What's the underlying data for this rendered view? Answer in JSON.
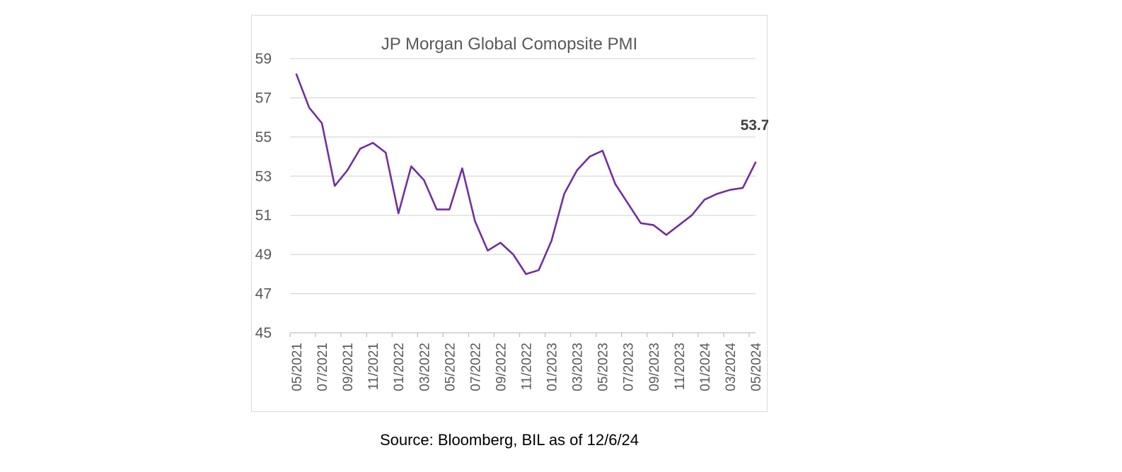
{
  "chart_data": {
    "type": "line",
    "title": "JP Morgan Global Comopsite PMI",
    "xlabel": "",
    "ylabel": "",
    "ylim": [
      45,
      59
    ],
    "y_ticks": [
      "45",
      "47",
      "49",
      "51",
      "53",
      "55",
      "57",
      "59"
    ],
    "x": [
      "05/2021",
      "06/2021",
      "07/2021",
      "08/2021",
      "09/2021",
      "10/2021",
      "11/2021",
      "12/2021",
      "01/2022",
      "02/2022",
      "03/2022",
      "04/2022",
      "05/2022",
      "06/2022",
      "07/2022",
      "08/2022",
      "09/2022",
      "10/2022",
      "11/2022",
      "12/2022",
      "01/2023",
      "02/2023",
      "03/2023",
      "04/2023",
      "05/2023",
      "06/2023",
      "07/2023",
      "08/2023",
      "09/2023",
      "10/2023",
      "11/2023",
      "12/2023",
      "01/2024",
      "02/2024",
      "03/2024",
      "04/2024",
      "05/2024"
    ],
    "x_tick_labels": [
      "05/2021",
      "07/2021",
      "09/2021",
      "11/2021",
      "01/2022",
      "03/2022",
      "05/2022",
      "07/2022",
      "09/2022",
      "11/2022",
      "01/2023",
      "03/2023",
      "05/2023",
      "07/2023",
      "09/2023",
      "11/2023",
      "01/2024",
      "03/2024",
      "05/2024"
    ],
    "series": [
      {
        "values": [
          58.2,
          56.5,
          55.7,
          52.5,
          53.3,
          54.4,
          54.7,
          54.2,
          51.1,
          53.5,
          52.8,
          51.3,
          51.3,
          53.4,
          50.7,
          49.2,
          49.6,
          49.0,
          48.0,
          48.2,
          49.7,
          52.1,
          53.3,
          54.0,
          54.3,
          52.6,
          51.6,
          50.6,
          50.5,
          50.0,
          50.5,
          51.0,
          51.8,
          52.1,
          52.3,
          52.4,
          53.7
        ],
        "color": "#7030a0"
      }
    ],
    "annotations": [
      {
        "label": "53.7",
        "x": "05/2024",
        "y": 53.7
      }
    ],
    "grid": true,
    "gridline_color": "#d9d9d9",
    "axis_color": "#bfbfbf"
  },
  "source_note": "Source: Bloomberg, BIL as of 12/6/24"
}
